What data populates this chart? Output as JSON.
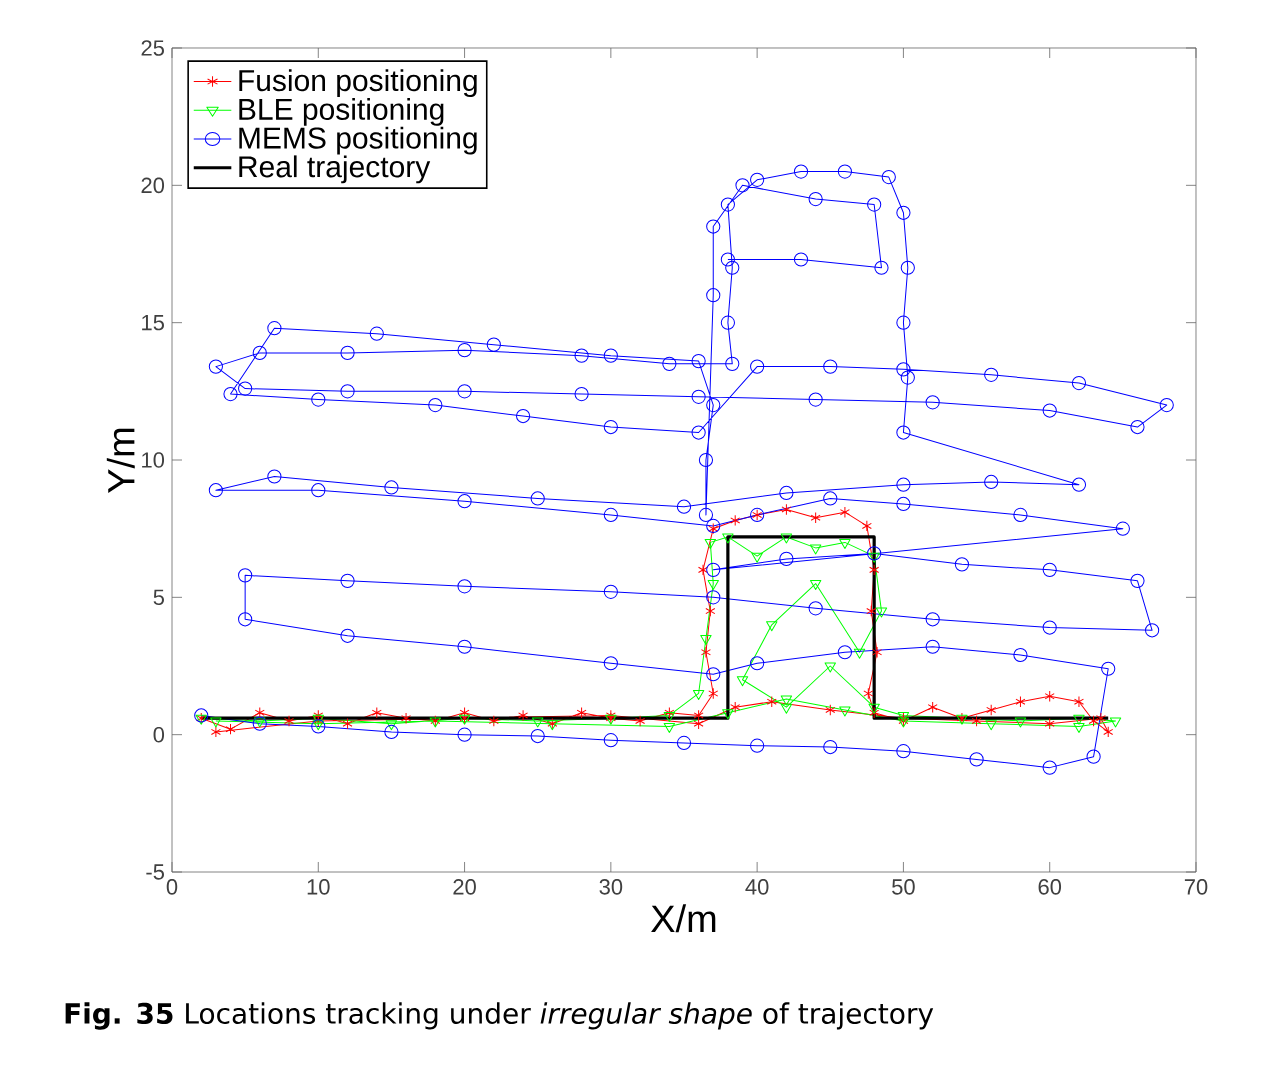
{
  "chart_data": {
    "type": "line",
    "xlabel": "X/m",
    "ylabel": "Y/m",
    "annotations": [
      "**Fig. 35** Locations tracking under *irregular shape* of trajectory"
    ],
    "xlim": [
      0,
      70
    ],
    "ylim": [
      -5,
      25
    ],
    "xticks": [
      0,
      10,
      20,
      30,
      40,
      50,
      60,
      70
    ],
    "yticks": [
      -5,
      0,
      5,
      10,
      15,
      20,
      25
    ],
    "legend": "top left",
    "line_style": "solid",
    "series": [
      {
        "name": "Fusion positioning",
        "color": "#ff0000",
        "marker": "cross",
        "x": [
          2,
          4,
          6,
          8,
          10,
          12,
          14,
          16,
          18,
          20,
          22,
          24,
          26,
          28,
          30,
          32,
          34,
          36,
          37,
          36.5,
          36.8,
          36.3,
          37,
          38.5,
          40,
          42,
          44,
          46,
          47.5,
          48,
          47.8,
          48.2,
          47.6,
          48,
          50,
          52,
          54,
          56,
          58,
          60,
          62,
          63,
          64,
          63.5,
          60,
          55,
          50,
          45,
          41,
          38.5,
          36,
          30,
          20,
          10,
          3
        ],
        "values": [
          0.6,
          0.2,
          0.8,
          0.5,
          0.7,
          0.4,
          0.8,
          0.6,
          0.5,
          0.8,
          0.5,
          0.7,
          0.4,
          0.8,
          0.6,
          0.5,
          0.8,
          0.7,
          1.5,
          3,
          4.5,
          6,
          7.5,
          7.8,
          8.0,
          8.2,
          7.9,
          8.1,
          7.6,
          6,
          4.5,
          3,
          1.5,
          0.8,
          0.5,
          1.0,
          0.6,
          0.9,
          1.2,
          1.4,
          1.2,
          0.5,
          0.1,
          0.6,
          0.4,
          0.5,
          0.6,
          0.9,
          1.2,
          1.0,
          0.4,
          0.7,
          0.6,
          0.5,
          0.1
        ]
      },
      {
        "name": "BLE positioning",
        "color": "#00ff00",
        "marker": "triangle",
        "x": [
          2,
          6,
          10,
          15,
          20,
          25,
          30,
          34,
          36,
          36.5,
          37,
          36.8,
          38,
          40,
          42,
          44,
          46,
          48,
          48.5,
          47,
          44,
          41,
          39,
          42,
          45,
          48,
          50,
          54,
          58,
          62,
          64.5,
          62,
          56,
          50,
          46,
          42,
          38,
          34,
          26,
          18,
          10,
          3
        ],
        "values": [
          0.6,
          0.5,
          0.6,
          0.4,
          0.6,
          0.5,
          0.6,
          0.7,
          1.5,
          3.5,
          5.5,
          7,
          7.2,
          6.5,
          7.2,
          6.8,
          7.0,
          6.5,
          4.5,
          3,
          5.5,
          4,
          2,
          1,
          2.5,
          1,
          0.7,
          0.6,
          0.5,
          0.6,
          0.5,
          0.3,
          0.4,
          0.5,
          0.9,
          1.3,
          0.8,
          0.3,
          0.4,
          0.5,
          0.4,
          0.5
        ]
      },
      {
        "name": "MEMS positioning",
        "color": "#0000ff",
        "marker": "circle",
        "x": [
          2,
          6,
          10,
          15,
          20,
          25,
          30,
          35,
          40,
          45,
          50,
          55,
          60,
          63,
          64,
          58,
          52,
          46,
          40,
          37,
          30,
          20,
          12,
          5,
          5,
          12,
          20,
          30,
          37,
          44,
          52,
          60,
          67,
          66,
          60,
          54,
          48,
          42,
          37,
          65,
          58,
          50,
          45,
          40,
          37,
          30,
          20,
          10,
          3,
          7,
          15,
          25,
          35,
          42,
          50,
          56,
          62,
          50,
          50.3,
          50,
          50.3,
          50,
          49,
          46,
          43,
          40,
          38,
          38.3,
          38,
          38.3,
          34,
          28,
          20,
          12,
          6,
          3,
          5,
          12,
          20,
          28,
          36,
          44,
          52,
          60,
          66,
          68,
          62,
          56,
          50,
          45,
          40,
          36,
          30,
          24,
          18,
          10,
          4,
          7,
          14,
          22,
          30,
          36,
          37,
          36.5,
          36.5,
          37,
          37,
          39,
          44,
          48,
          48.5,
          43,
          38
        ],
        "values": [
          0.7,
          0.4,
          0.3,
          0.1,
          0.0,
          -0.05,
          -0.2,
          -0.3,
          -0.4,
          -0.45,
          -0.6,
          -0.9,
          -1.2,
          -0.8,
          2.4,
          2.9,
          3.2,
          3.0,
          2.6,
          2.2,
          2.6,
          3.2,
          3.6,
          4.2,
          5.8,
          5.6,
          5.4,
          5.2,
          5.0,
          4.6,
          4.2,
          3.9,
          3.8,
          5.6,
          6.0,
          6.2,
          6.6,
          6.4,
          6.0,
          7.5,
          8.0,
          8.4,
          8.6,
          8.0,
          7.6,
          8.0,
          8.5,
          8.9,
          8.9,
          9.4,
          9.0,
          8.6,
          8.3,
          8.8,
          9.1,
          9.2,
          9.1,
          11,
          13,
          15,
          17,
          19,
          20.3,
          20.5,
          20.5,
          20.2,
          19.3,
          17,
          15,
          13.5,
          13.5,
          13.8,
          14.0,
          13.9,
          13.9,
          13.4,
          12.6,
          12.5,
          12.5,
          12.4,
          12.3,
          12.2,
          12.1,
          11.8,
          11.2,
          12.0,
          12.8,
          13.1,
          13.3,
          13.4,
          13.4,
          11.0,
          11.2,
          11.6,
          12.0,
          12.2,
          12.4,
          14.8,
          14.6,
          14.2,
          13.8,
          13.6,
          12,
          10,
          8,
          16,
          18.5,
          20.0,
          19.5,
          19.3,
          17,
          17.3,
          17.3
        ]
      },
      {
        "name": "Real trajectory",
        "color": "#000000",
        "marker": "none",
        "x": [
          2,
          38,
          38,
          48,
          48,
          64
        ],
        "values": [
          0.6,
          0.6,
          7.2,
          7.2,
          0.6,
          0.6
        ]
      }
    ]
  }
}
